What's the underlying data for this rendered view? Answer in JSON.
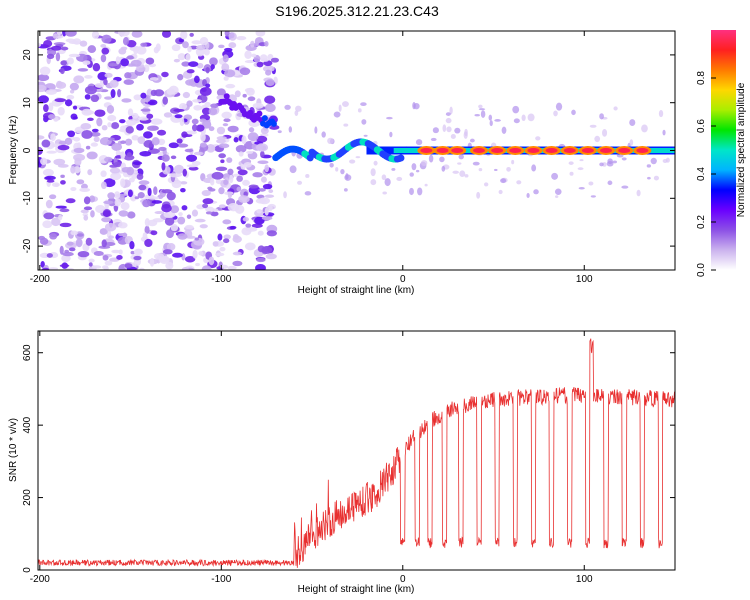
{
  "title": "S196.2025.312.21.23.C43",
  "chart_data": [
    {
      "type": "heatmap",
      "xlabel": "Height of straight line (km)",
      "ylabel": "Frequency (Hz)",
      "xlim": [
        -201,
        150
      ],
      "ylim": [
        -25,
        25
      ],
      "xticks": [
        -200,
        -100,
        0,
        100
      ],
      "yticks": [
        -20,
        -10,
        0,
        10,
        20
      ],
      "colorbar": {
        "label": "Normalized spectral amplitude",
        "range": [
          0,
          1
        ],
        "ticks": [
          "0.0",
          "0.2",
          "0.4",
          "0.6",
          "0.8"
        ],
        "colors": [
          "#ffffff",
          "#cbb2ee",
          "#8c50e6",
          "#6a00ff",
          "#0000ff",
          "#00b4ff",
          "#00e6c8",
          "#00e600",
          "#aaee00",
          "#ffd700",
          "#ff7a00",
          "#ff2020",
          "#ff3080"
        ]
      },
      "features": {
        "noise_region_x": [
          -201,
          -70
        ],
        "tone_onset_x": -70,
        "tone_frequency_hz": 0,
        "saturated_blobs_x": [
          13,
          22,
          30,
          42,
          52,
          62,
          72,
          82,
          92,
          102,
          112,
          122,
          132
        ]
      }
    },
    {
      "type": "line",
      "xlabel": "Height of straight line (km)",
      "ylabel": "SNR (10 * v/v)",
      "xlim": [
        -201,
        150
      ],
      "ylim": [
        0,
        660
      ],
      "xticks": [
        -200,
        -100,
        0,
        100
      ],
      "yticks": [
        0,
        200,
        400,
        600
      ],
      "series_color": "#e83030",
      "baseline_snr": 20,
      "snr_ramp": [
        {
          "x": -60,
          "y": 40
        },
        {
          "x": -45,
          "y": 120
        },
        {
          "x": -30,
          "y": 170
        },
        {
          "x": -15,
          "y": 210
        },
        {
          "x": -5,
          "y": 280
        },
        {
          "x": 5,
          "y": 360
        },
        {
          "x": 15,
          "y": 410
        },
        {
          "x": 25,
          "y": 440
        },
        {
          "x": 40,
          "y": 465
        },
        {
          "x": 60,
          "y": 475
        },
        {
          "x": 80,
          "y": 480
        },
        {
          "x": 100,
          "y": 485
        },
        {
          "x": 150,
          "y": 470
        }
      ],
      "peak": {
        "x": 104,
        "y": 655
      },
      "dropout_centers_x": [
        0,
        8,
        15,
        23,
        32,
        42,
        52,
        62,
        72,
        82,
        92,
        102,
        112,
        122,
        132,
        142
      ],
      "dropout_snr": 60
    }
  ]
}
